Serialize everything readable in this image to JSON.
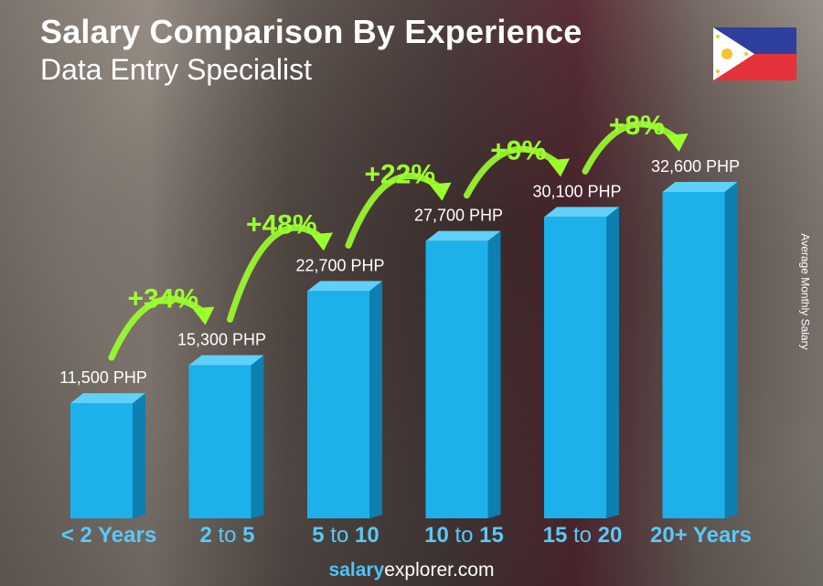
{
  "title": "Salary Comparison By Experience",
  "subtitle": "Data Entry Specialist",
  "y_axis_label": "Average Monthly Salary",
  "footer": {
    "brand_bold": "salary",
    "brand_rest": "explorer.com"
  },
  "flag": "philippines-flag",
  "colors": {
    "bar_front": "#1eb0ea",
    "bar_side": "#0d7fb0",
    "bar_top": "#5fd0f7",
    "percent": "#9cff2e",
    "xlabel": "#5bc8f5"
  },
  "chart_data": {
    "type": "bar",
    "categories": [
      "< 2 Years",
      "2 to 5",
      "5 to 10",
      "10 to 15",
      "15 to 20",
      "20+ Years"
    ],
    "values": [
      11500,
      15300,
      22700,
      27700,
      30100,
      32600
    ],
    "value_labels": [
      "11,500 PHP",
      "15,300 PHP",
      "22,700 PHP",
      "27,700 PHP",
      "30,100 PHP",
      "32,600 PHP"
    ],
    "unit": "PHP",
    "increases": [
      "+34%",
      "+48%",
      "+22%",
      "+9%",
      "+8%"
    ],
    "ylabel": "Average Monthly Salary",
    "grid": false
  }
}
